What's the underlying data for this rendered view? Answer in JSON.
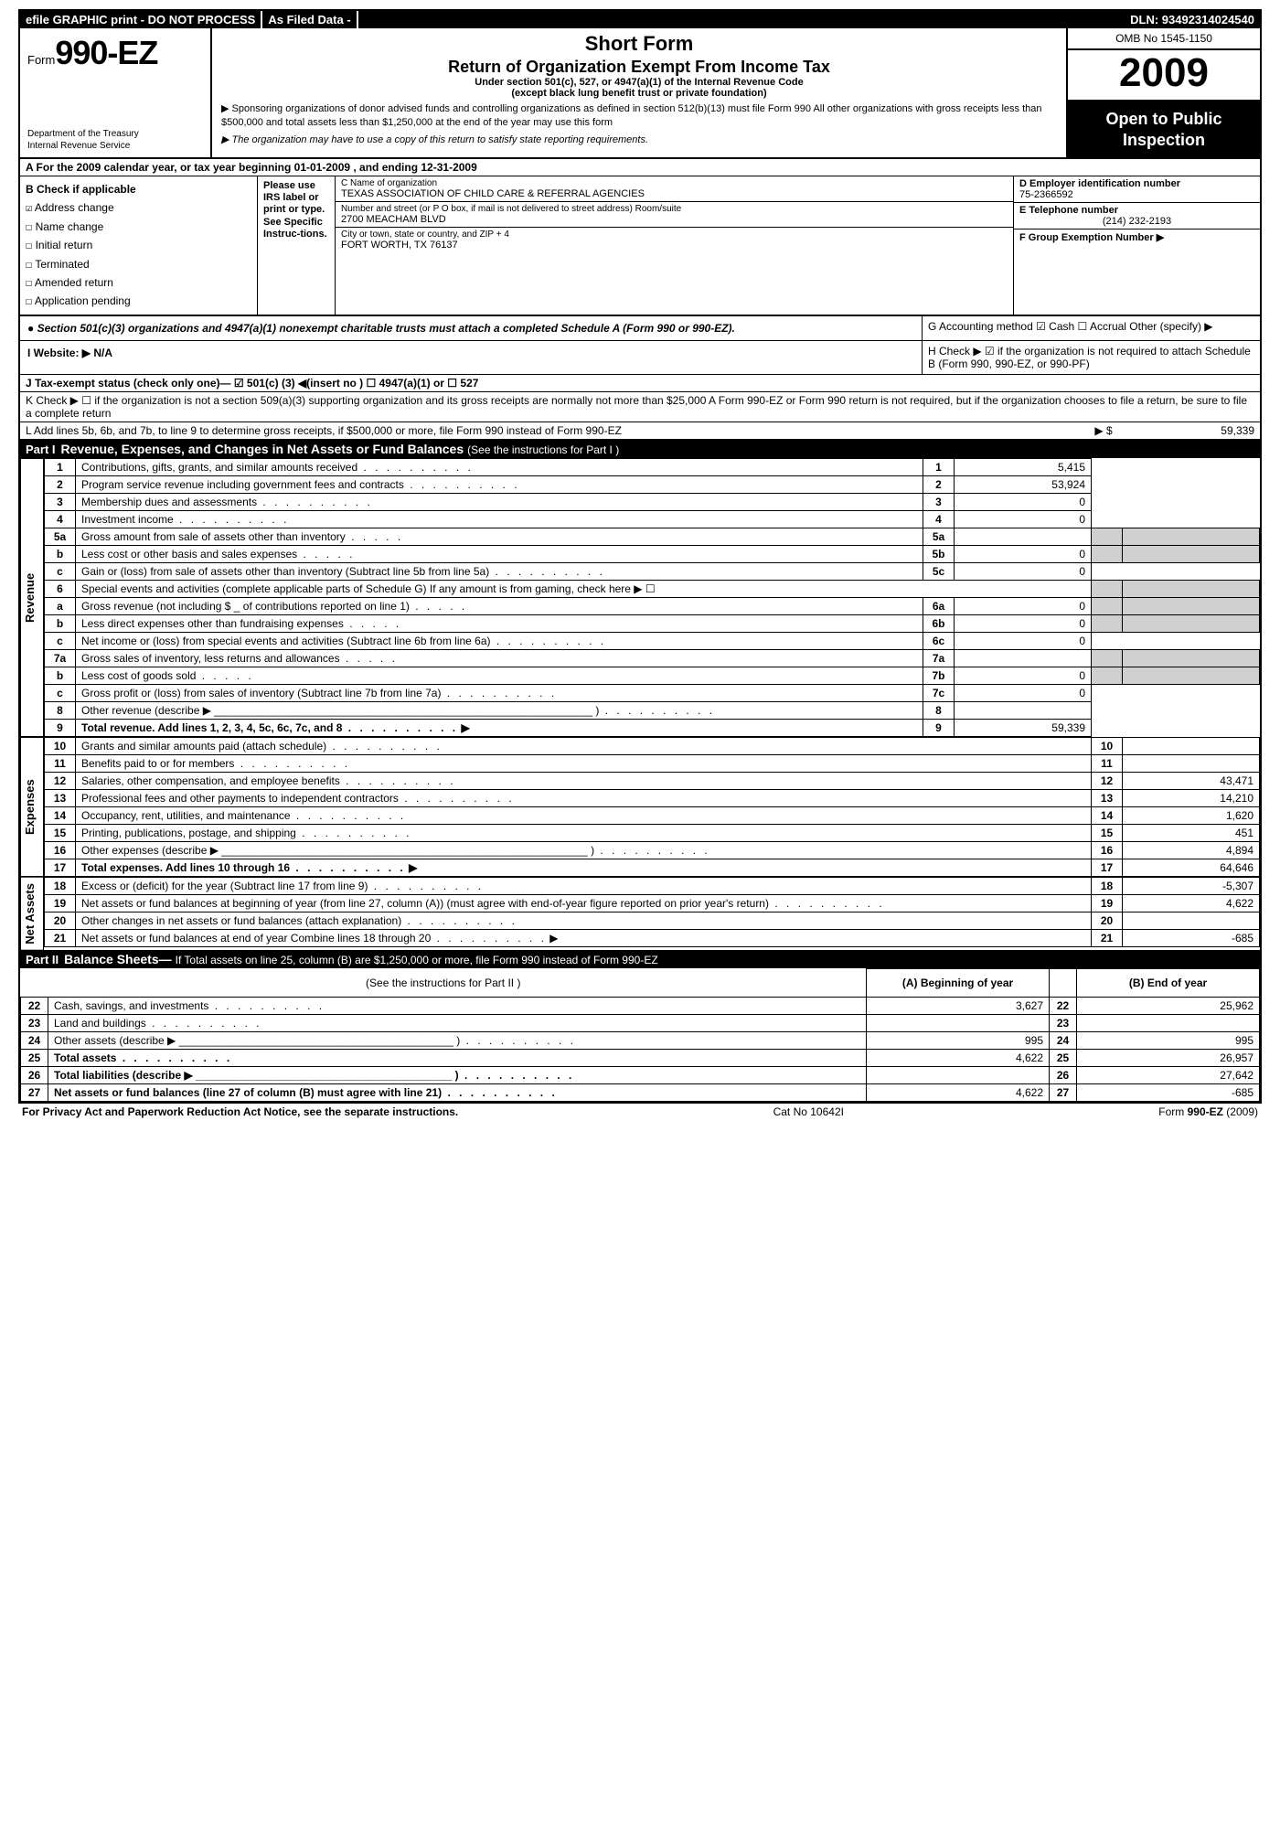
{
  "header_bar": {
    "efile": "efile GRAPHIC print - DO NOT PROCESS",
    "asfiled": "As Filed Data -",
    "dln": "DLN: 93492314024540"
  },
  "form": {
    "prefix": "Form",
    "number": "990-EZ",
    "dept1": "Department of the Treasury",
    "dept2": "Internal Revenue Service",
    "title1": "Short Form",
    "title2": "Return of Organization Exempt From Income Tax",
    "sub1": "Under section 501(c), 527, or 4947(a)(1) of the Internal Revenue Code",
    "sub2": "(except black lung benefit trust or private foundation)",
    "note1": "▶ Sponsoring organizations of donor advised funds and controlling organizations as defined in section 512(b)(13) must file Form 990  All other organizations with gross receipts less than $500,000 and total assets less than $1,250,000 at the end of the year may use this form",
    "note2": "▶ The organization may have to use a copy of this return to satisfy state reporting requirements.",
    "omb": "OMB No  1545-1150",
    "year": "2009",
    "inspect1": "Open to Public",
    "inspect2": "Inspection"
  },
  "A": "A  For the 2009 calendar year, or tax year beginning 01-01-2009                         , and ending 12-31-2009",
  "B": {
    "hdr": "B  Check if applicable",
    "items": [
      "Address change",
      "Name change",
      "Initial return",
      "Terminated",
      "Amended return",
      "Application pending"
    ],
    "checked_idx": 0
  },
  "irs_col": "Please use IRS label or print or type. See Specific Instruc-tions.",
  "C": {
    "name_lbl": "C Name of organization",
    "name": "TEXAS ASSOCIATION OF CHILD CARE & REFERRAL AGENCIES",
    "street_lbl": "Number and street (or P O  box, if mail is not delivered to street address) Room/suite",
    "street": "2700 MEACHAM BLVD",
    "city_lbl": "City or town, state or country, and ZIP + 4",
    "city": "FORT WORTH, TX  76137"
  },
  "D": {
    "lbl": "D Employer identification number",
    "val": "75-2366592"
  },
  "E": {
    "lbl": "E Telephone number",
    "val": "(214) 232-2193"
  },
  "F": {
    "lbl": "F Group Exemption Number  ▶",
    "val": ""
  },
  "sec501": "● Section 501(c)(3) organizations and 4947(a)(1) nonexempt charitable trusts must attach a completed Schedule A (Form 990 or 990-EZ). ",
  "G": "G Accounting method   ☑ Cash   ☐ Accrual   Other (specify) ▶",
  "H": "H   Check ▶  ☑   if the organization is not required to attach Schedule B (Form 990, 990-EZ, or 990-PF)",
  "I": "I Website: ▶  N/A",
  "J": "J Tax-exempt status (check only one)— ☑ 501(c) (3) ◀(insert no ) ☐  4947(a)(1) or  ☐   527",
  "K": "K Check ▶ ☐   if the organization is not a section 509(a)(3) supporting organization and its gross receipts are normally not more than $25,000  A Form 990-EZ or Form 990 return is not required, but if the organization chooses to file a return, be sure to file a complete return",
  "L": {
    "text": "L Add lines 5b, 6b, and 7b, to line 9 to determine gross receipts, if $500,000 or more, file Form 990 instead of Form 990-EZ",
    "amt": "59,339"
  },
  "part1": {
    "label": "Part I",
    "title": "Revenue, Expenses, and Changes in Net Assets or Fund Balances",
    "paren": "(See the instructions for Part I )"
  },
  "revenue_label": "Revenue",
  "expenses_label": "Expenses",
  "netassets_label": "Net Assets",
  "lines": {
    "l1": {
      "n": "1",
      "t": "Contributions, gifts, grants, and similar amounts received",
      "rn": "1",
      "a": "5,415"
    },
    "l2": {
      "n": "2",
      "t": "Program service revenue including government fees and contracts",
      "rn": "2",
      "a": "53,924"
    },
    "l3": {
      "n": "3",
      "t": "Membership dues and assessments",
      "rn": "3",
      "a": "0"
    },
    "l4": {
      "n": "4",
      "t": "Investment income",
      "rn": "4",
      "a": "0"
    },
    "l5a": {
      "n": "5a",
      "t": "Gross amount from sale of assets other than inventory",
      "mn": "5a",
      "ma": ""
    },
    "l5b": {
      "n": "b",
      "t": "Less  cost or other basis and sales expenses",
      "mn": "5b",
      "ma": "0"
    },
    "l5c": {
      "n": "c",
      "t": "Gain or (loss) from sale of assets other than inventory (Subtract line 5b from line 5a)",
      "rn": "5c",
      "a": "0"
    },
    "l6": {
      "n": "6",
      "t": "Special events and activities (complete applicable parts of Schedule G)  If any amount is from gaming, check here  ▶   ☐"
    },
    "l6a": {
      "n": "a",
      "t": "Gross revenue (not including $ _ of contributions reported on line 1)",
      "mn": "6a",
      "ma": "0"
    },
    "l6b": {
      "n": "b",
      "t": "Less  direct expenses other than fundraising expenses",
      "mn": "6b",
      "ma": "0"
    },
    "l6c": {
      "n": "c",
      "t": "Net income or (loss) from special events and activities (Subtract line 6b from line 6a)",
      "rn": "6c",
      "a": "0"
    },
    "l7a": {
      "n": "7a",
      "t": "Gross sales of inventory, less returns and allowances",
      "mn": "7a",
      "ma": ""
    },
    "l7b": {
      "n": "b",
      "t": "Less  cost of goods sold",
      "mn": "7b",
      "ma": "0"
    },
    "l7c": {
      "n": "c",
      "t": "Gross profit or (loss) from sales of inventory (Subtract line 7b from line 7a)",
      "rn": "7c",
      "a": "0"
    },
    "l8": {
      "n": "8",
      "t": "Other revenue (describe ▶ ______________________________________________________________ )",
      "rn": "8",
      "a": ""
    },
    "l9": {
      "n": "9",
      "t": "Total revenue. Add lines 1, 2, 3, 4, 5c, 6c, 7c, and 8",
      "rn": "9",
      "a": "59,339",
      "bold": true
    },
    "l10": {
      "n": "10",
      "t": "Grants and similar amounts paid (attach schedule)",
      "rn": "10",
      "a": ""
    },
    "l11": {
      "n": "11",
      "t": "Benefits paid to or for members",
      "rn": "11",
      "a": ""
    },
    "l12": {
      "n": "12",
      "t": "Salaries, other compensation, and employee benefits",
      "rn": "12",
      "a": "43,471"
    },
    "l13": {
      "n": "13",
      "t": "Professional fees and other payments to independent contractors",
      "rn": "13",
      "a": "14,210"
    },
    "l14": {
      "n": "14",
      "t": "Occupancy, rent, utilities, and maintenance",
      "rn": "14",
      "a": "1,620"
    },
    "l15": {
      "n": "15",
      "t": "Printing, publications, postage, and shipping",
      "rn": "15",
      "a": "451"
    },
    "l16": {
      "n": "16",
      "t": "Other expenses (describe ▶  ____________________________________________________________ )",
      "rn": "16",
      "a": "4,894"
    },
    "l17": {
      "n": "17",
      "t": "Total expenses. Add lines 10 through 16",
      "rn": "17",
      "a": "64,646",
      "bold": true
    },
    "l18": {
      "n": "18",
      "t": "Excess or (deficit) for the year (Subtract line 17 from line 9)",
      "rn": "18",
      "a": "-5,307"
    },
    "l19": {
      "n": "19",
      "t": "Net assets or fund balances at beginning of year (from line 27, column (A)) (must agree with end-of-year figure reported on prior year's return)",
      "rn": "19",
      "a": "4,622"
    },
    "l20": {
      "n": "20",
      "t": "Other changes in net assets or fund balances (attach explanation)",
      "rn": "20",
      "a": ""
    },
    "l21": {
      "n": "21",
      "t": "Net assets or fund balances at end of year  Combine lines 18 through 20",
      "rn": "21",
      "a": "-685"
    }
  },
  "part2": {
    "label": "Part II",
    "title": "Balance Sheets—",
    "paren": "If Total assets on line 25, column (B) are $1,250,000 or more, file Form 990 instead of Form 990-EZ",
    "instr": "(See the instructions for Part II )",
    "colA": "(A) Beginning of year",
    "colB": "(B) End of year"
  },
  "bs": {
    "l22": {
      "n": "22",
      "t": "Cash, savings, and investments",
      "a": "3,627",
      "b": "25,962"
    },
    "l23": {
      "n": "23",
      "t": "Land and buildings",
      "a": "",
      "b": ""
    },
    "l24": {
      "n": "24",
      "t": "Other assets (describe ▶ _____________________________________________ )",
      "a": "995",
      "b": "995"
    },
    "l25": {
      "n": "25",
      "t": "Total assets",
      "a": "4,622",
      "b": "26,957",
      "bold": true
    },
    "l26": {
      "n": "26",
      "t": "Total liabilities (describe ▶  __________________________________________ )",
      "a": "",
      "b": "27,642",
      "bold": true
    },
    "l27": {
      "n": "27",
      "t": "Net assets or fund balances (line 27 of column (B) must agree with line 21)",
      "a": "4,622",
      "b": "-685",
      "bold": true
    }
  },
  "footer": {
    "left": "For Privacy Act and Paperwork Reduction Act Notice, see the separate instructions.",
    "mid": "Cat No  10642I",
    "right": "Form 990-EZ (2009)"
  }
}
